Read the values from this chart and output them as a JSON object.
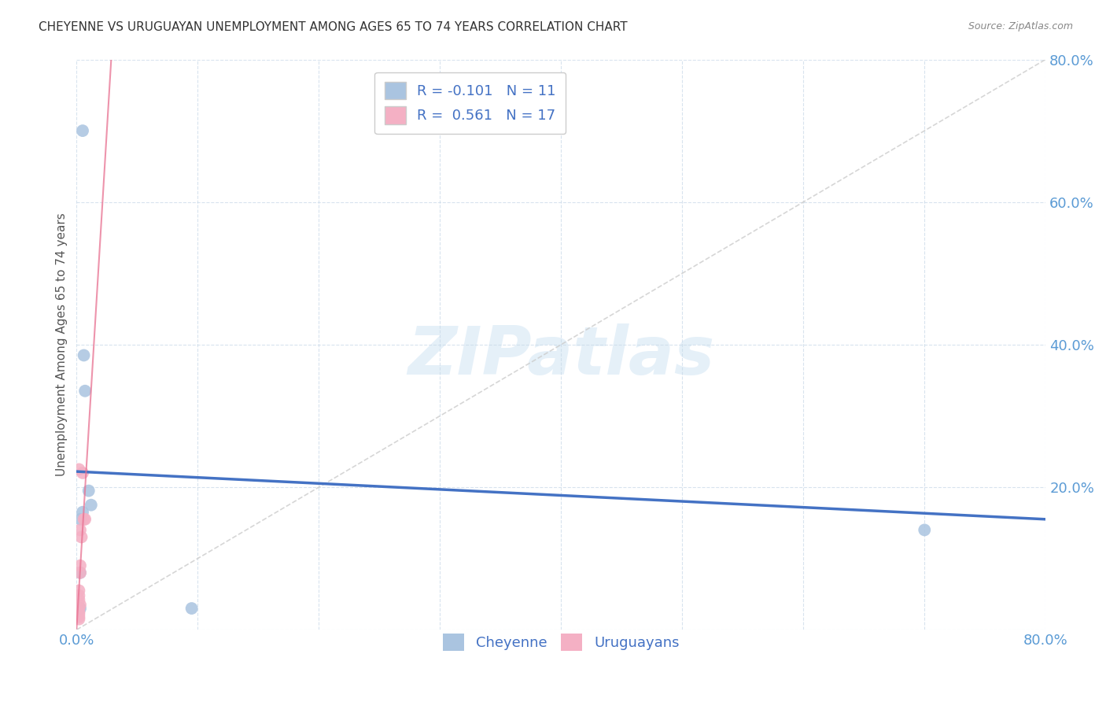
{
  "title": "CHEYENNE VS URUGUAYAN UNEMPLOYMENT AMONG AGES 65 TO 74 YEARS CORRELATION CHART",
  "source": "Source: ZipAtlas.com",
  "ylabel": "Unemployment Among Ages 65 to 74 years",
  "xlim": [
    0.0,
    0.8
  ],
  "ylim": [
    0.0,
    0.8
  ],
  "xticks": [
    0.0,
    0.1,
    0.2,
    0.3,
    0.4,
    0.5,
    0.6,
    0.7,
    0.8
  ],
  "yticks": [
    0.0,
    0.2,
    0.4,
    0.6,
    0.8
  ],
  "cheyenne_points": [
    [
      0.005,
      0.7
    ],
    [
      0.006,
      0.385
    ],
    [
      0.007,
      0.335
    ],
    [
      0.01,
      0.195
    ],
    [
      0.012,
      0.175
    ],
    [
      0.005,
      0.165
    ],
    [
      0.003,
      0.155
    ],
    [
      0.003,
      0.08
    ],
    [
      0.003,
      0.03
    ],
    [
      0.095,
      0.03
    ],
    [
      0.7,
      0.14
    ]
  ],
  "uruguayan_points": [
    [
      0.002,
      0.225
    ],
    [
      0.005,
      0.22
    ],
    [
      0.006,
      0.155
    ],
    [
      0.007,
      0.155
    ],
    [
      0.003,
      0.14
    ],
    [
      0.004,
      0.13
    ],
    [
      0.003,
      0.09
    ],
    [
      0.003,
      0.08
    ],
    [
      0.002,
      0.055
    ],
    [
      0.002,
      0.048
    ],
    [
      0.002,
      0.042
    ],
    [
      0.003,
      0.035
    ],
    [
      0.002,
      0.03
    ],
    [
      0.002,
      0.025
    ],
    [
      0.002,
      0.022
    ],
    [
      0.002,
      0.018
    ],
    [
      0.002,
      0.015
    ]
  ],
  "cheyenne_R": -0.101,
  "cheyenne_N": 11,
  "uruguayan_R": 0.561,
  "uruguayan_N": 17,
  "cheyenne_color": "#aac4e0",
  "uruguayan_color": "#f4b0c4",
  "cheyenne_line_color": "#4472c4",
  "uruguayan_line_color": "#e87090",
  "diagonal_line_color": "#cccccc",
  "watermark_text": "ZIPatlas",
  "title_fontsize": 11,
  "tick_color": "#5b9bd5",
  "ylabel_color": "#555555"
}
